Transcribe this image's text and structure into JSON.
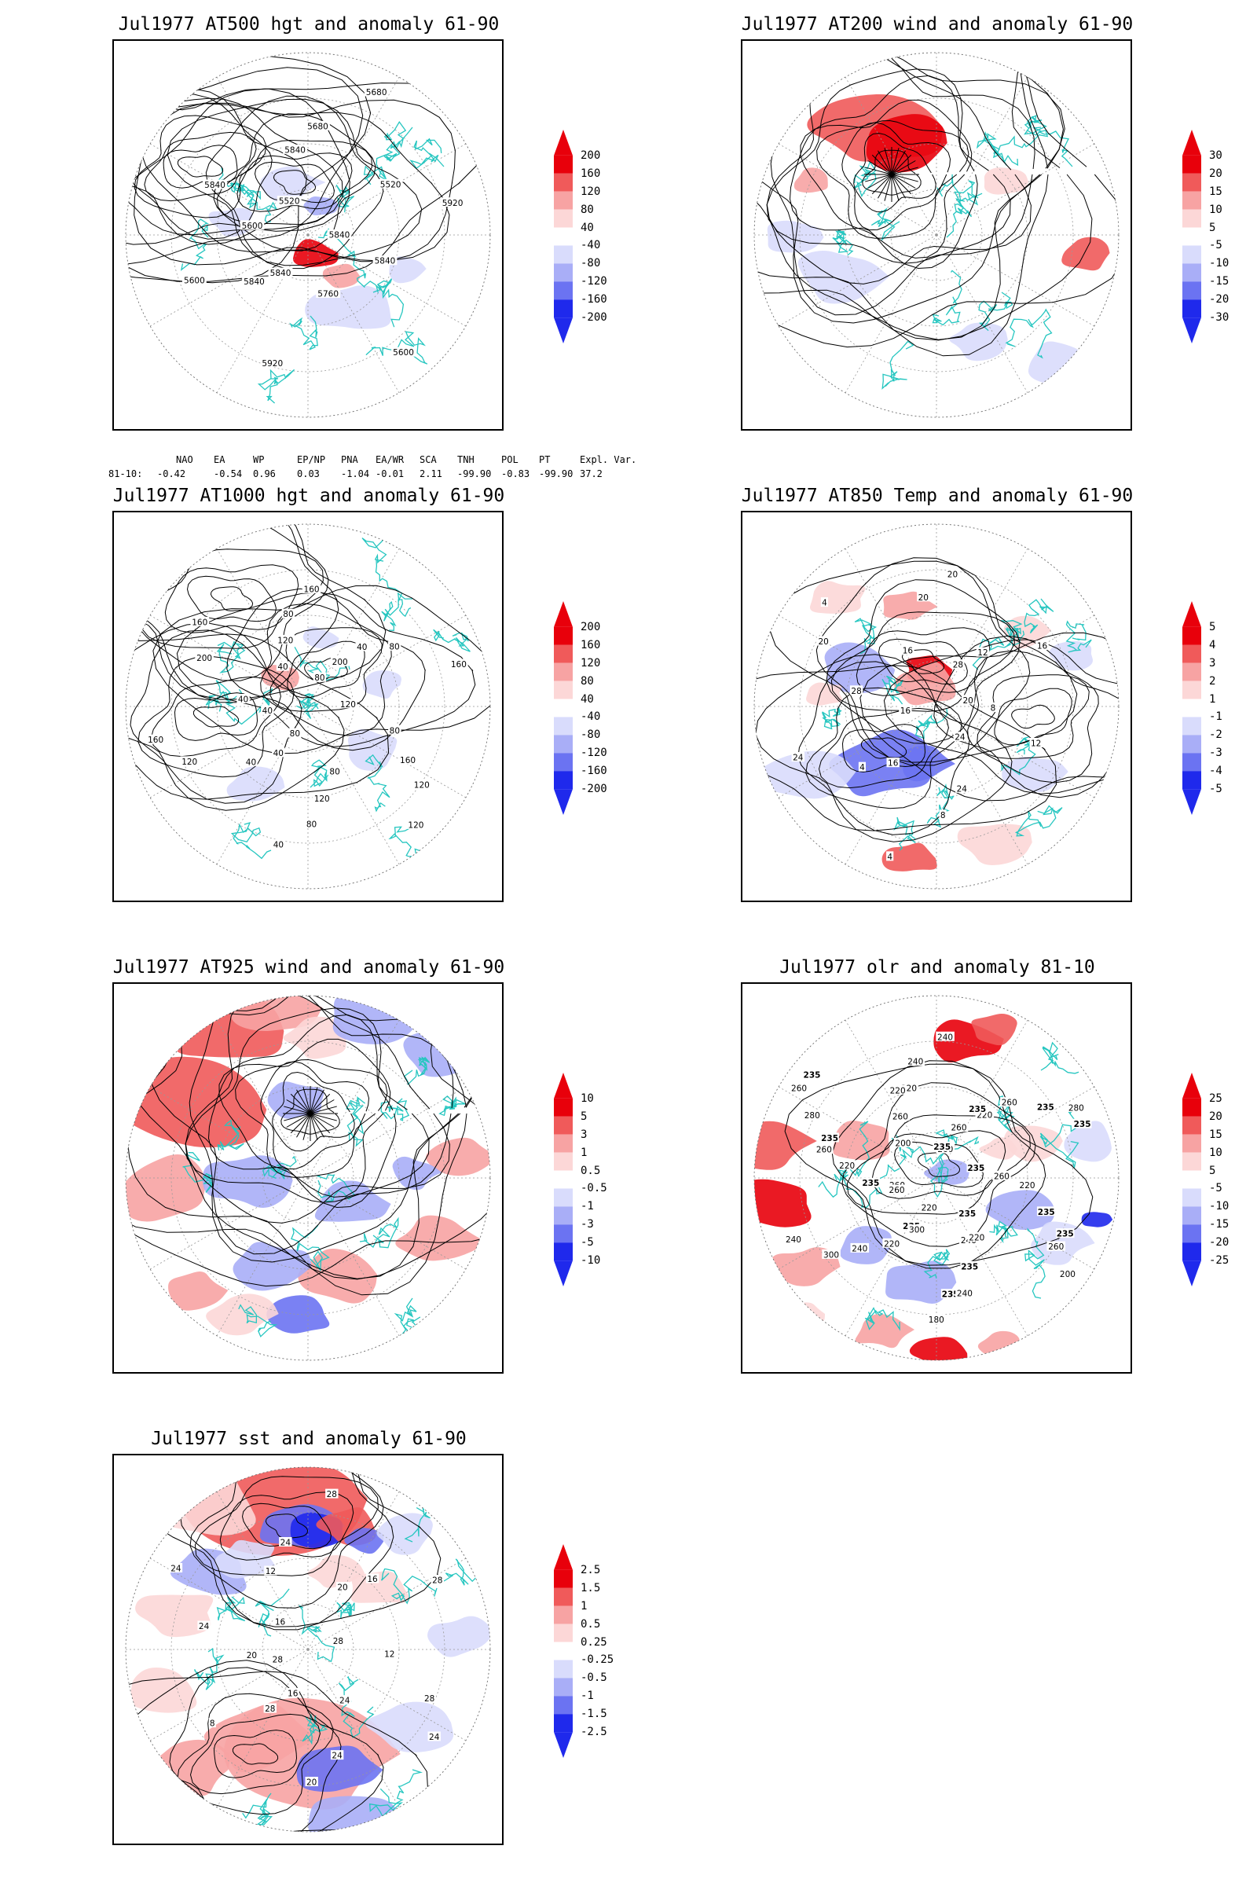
{
  "panels": [
    {
      "id": "p500",
      "title": "Jul1977 AT500 hgt and anomaly 61-90",
      "colorbar": [
        "200",
        "160",
        "120",
        "80",
        "40",
        "-40",
        "-80",
        "-120",
        "-160",
        "-200"
      ],
      "contour_labels": [
        "5840",
        "5840",
        "5680",
        "5600",
        "5600",
        "5520",
        "5920",
        "5520",
        "5840",
        "5600",
        "5680",
        "5760",
        "5840",
        "5920",
        "5840",
        "5840"
      ],
      "index_table": {
        "headers": [
          "NAO",
          "EA",
          "WP",
          "EP/NP",
          "PNA",
          "EA/WR",
          "SCA",
          "TNH",
          "POL",
          "PT",
          "Expl. Var."
        ],
        "row_label": "81-10:",
        "values": [
          "-0.42",
          "-0.54",
          "0.96",
          "0.03",
          "-1.04",
          "-0.01",
          "2.11",
          "-99.90",
          "-0.83",
          "-99.90",
          "37.2"
        ]
      }
    },
    {
      "id": "p200",
      "title": "Jul1977 AT200 wind and anomaly 61-90",
      "colorbar": [
        "30",
        "20",
        "15",
        "10",
        "5",
        "-5",
        "-10",
        "-15",
        "-20",
        "-30"
      ],
      "contour_labels": []
    },
    {
      "id": "p1000",
      "title": "Jul1977 AT1000 hgt and anomaly 61-90",
      "colorbar": [
        "200",
        "160",
        "120",
        "80",
        "40",
        "-40",
        "-80",
        "-120",
        "-160",
        "-200"
      ],
      "contour_labels": [
        "80",
        "120",
        "160",
        "160",
        "200",
        "120",
        "160",
        "120",
        "40",
        "160",
        "120",
        "40",
        "80",
        "40",
        "40",
        "80",
        "120",
        "80",
        "80",
        "200",
        "160",
        "40",
        "80",
        "120",
        "40",
        "40",
        "80"
      ]
    },
    {
      "id": "p850",
      "title": "Jul1977 AT850 Temp and anomaly 61-90",
      "colorbar": [
        "5",
        "4",
        "3",
        "2",
        "1",
        "-1",
        "-2",
        "-3",
        "-4",
        "-5"
      ],
      "contour_labels": [
        "16",
        "12",
        "8",
        "4",
        "8",
        "4",
        "20",
        "24",
        "28",
        "16",
        "4",
        "16",
        "12",
        "24",
        "28",
        "24",
        "20",
        "20",
        "16",
        "20"
      ]
    },
    {
      "id": "p925",
      "title": "Jul1977 AT925 wind and anomaly 61-90",
      "colorbar": [
        "10",
        "5",
        "3",
        "1",
        "0.5",
        "-0.5",
        "-1",
        "-3",
        "-5",
        "-10"
      ],
      "contour_labels": []
    },
    {
      "id": "polr",
      "title": "Jul1977 olr and anomaly 81-10",
      "colorbar": [
        "25",
        "20",
        "15",
        "10",
        "5",
        "-5",
        "-10",
        "-15",
        "-20",
        "-25"
      ],
      "contour_labels": [
        "260",
        "240",
        "235",
        "235",
        "235",
        "220",
        "260",
        "260",
        "220",
        "235",
        "235",
        "260",
        "240",
        "240",
        "235",
        "220",
        "235",
        "220",
        "260",
        "235",
        "240",
        "260",
        "235",
        "280",
        "235",
        "220",
        "240",
        "200",
        "235",
        "260",
        "180",
        "200",
        "220",
        "300",
        "235",
        "220",
        "260",
        "280",
        "300",
        "220",
        "235",
        "260",
        "235",
        "240",
        "260"
      ]
    },
    {
      "id": "psst",
      "title": "Jul1977 sst and anomaly 61-90",
      "colorbar": [
        "2.5",
        "1.5",
        "1",
        "0.5",
        "0.25",
        "-0.25",
        "-0.5",
        "-1",
        "-1.5",
        "-2.5"
      ],
      "contour_labels": [
        "28",
        "28",
        "24",
        "24",
        "20",
        "16",
        "20",
        "16",
        "12",
        "8",
        "28",
        "24",
        "24",
        "28",
        "16",
        "12",
        "28",
        "28",
        "20",
        "24",
        "24"
      ]
    }
  ],
  "colors": {
    "red_strong": "#e8000b",
    "red_mid": "#f05a5a",
    "red_light": "#f7a3a3",
    "red_pale": "#fcd7d7",
    "blue_pale": "#d9dcfc",
    "blue_light": "#a9aef7",
    "blue_mid": "#6b73f2",
    "blue_strong": "#1f29ec",
    "coast": "#26c6c0"
  }
}
